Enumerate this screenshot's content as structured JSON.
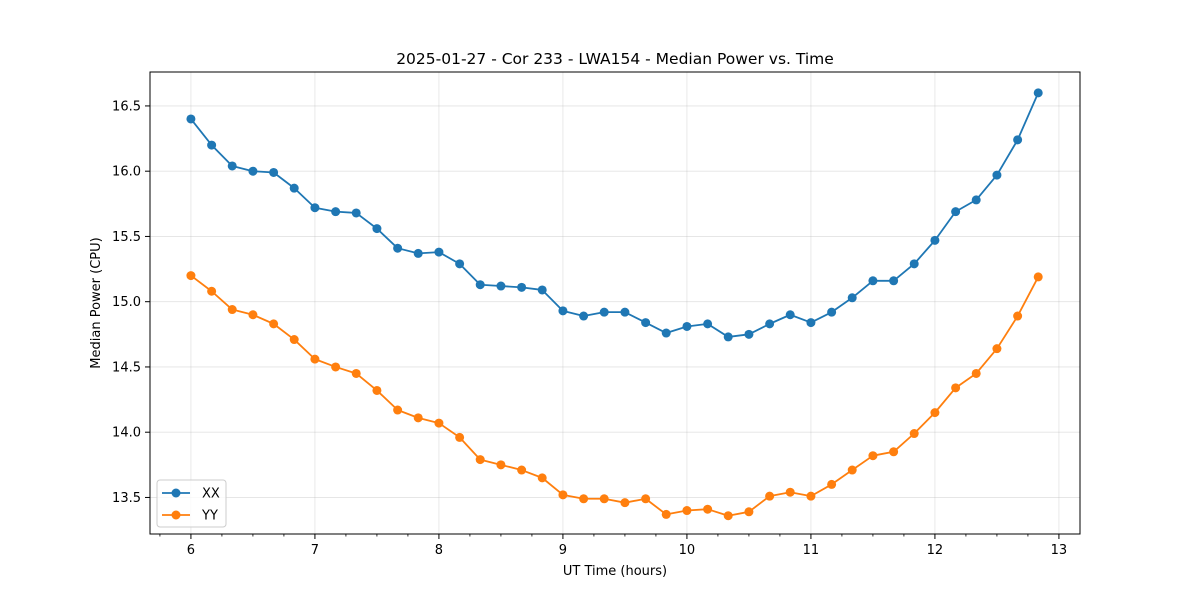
{
  "chart_data": {
    "type": "line",
    "title": "2025-01-27 - Cor 233 - LWA154 - Median Power vs. Time",
    "xlabel": "UT Time (hours)",
    "ylabel": "Median Power (CPU)",
    "xlim": [
      5.67,
      13.17
    ],
    "ylim": [
      13.22,
      16.76
    ],
    "xticks": [
      6,
      7,
      8,
      9,
      10,
      11,
      12,
      13
    ],
    "xtick_labels": [
      "6",
      "7",
      "8",
      "9",
      "10",
      "11",
      "12",
      "13"
    ],
    "yticks": [
      13.5,
      14.0,
      14.5,
      15.0,
      15.5,
      16.0,
      16.5
    ],
    "ytick_labels": [
      "13.5",
      "14.0",
      "14.5",
      "15.0",
      "15.5",
      "16.0",
      "16.5"
    ],
    "grid": true,
    "legend_position": "lower-left",
    "x": [
      6.0,
      6.167,
      6.333,
      6.5,
      6.667,
      6.833,
      7.0,
      7.167,
      7.333,
      7.5,
      7.667,
      7.833,
      8.0,
      8.167,
      8.333,
      8.5,
      8.667,
      8.833,
      9.0,
      9.167,
      9.333,
      9.5,
      9.667,
      9.833,
      10.0,
      10.167,
      10.333,
      10.5,
      10.667,
      10.833,
      11.0,
      11.167,
      11.333,
      11.5,
      11.667,
      11.833,
      12.0,
      12.167,
      12.333,
      12.5,
      12.667,
      12.833
    ],
    "series": [
      {
        "name": "XX",
        "color": "#1f77b4",
        "values": [
          16.4,
          16.2,
          16.04,
          16.0,
          15.99,
          15.87,
          15.72,
          15.69,
          15.68,
          15.56,
          15.41,
          15.37,
          15.38,
          15.29,
          15.13,
          15.12,
          15.11,
          15.09,
          14.93,
          14.89,
          14.92,
          14.92,
          14.84,
          14.76,
          14.81,
          14.83,
          14.73,
          14.75,
          14.83,
          14.9,
          14.84,
          14.92,
          15.03,
          15.16,
          15.16,
          15.29,
          15.47,
          15.69,
          15.78,
          15.97,
          16.24,
          16.6
        ]
      },
      {
        "name": "YY",
        "color": "#ff7f0e",
        "values": [
          15.2,
          15.08,
          14.94,
          14.9,
          14.83,
          14.71,
          14.56,
          14.5,
          14.45,
          14.32,
          14.17,
          14.11,
          14.07,
          13.96,
          13.79,
          13.75,
          13.71,
          13.65,
          13.52,
          13.49,
          13.49,
          13.46,
          13.49,
          13.37,
          13.4,
          13.41,
          13.36,
          13.39,
          13.51,
          13.54,
          13.51,
          13.6,
          13.71,
          13.82,
          13.85,
          13.99,
          14.15,
          14.34,
          14.45,
          14.64,
          14.89,
          15.19
        ]
      }
    ]
  }
}
